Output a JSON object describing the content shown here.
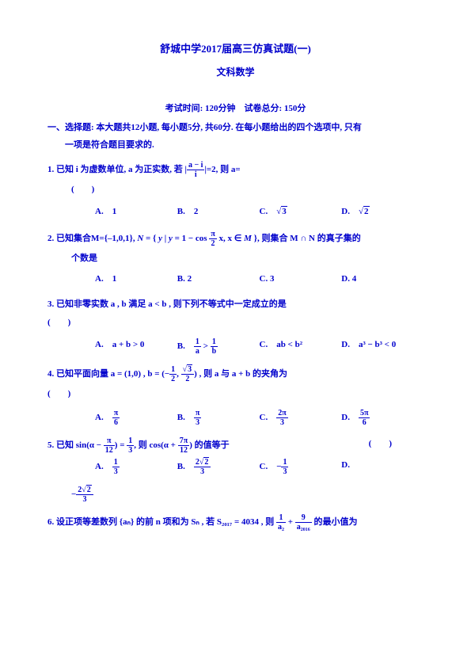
{
  "title": "舒城中学2017届高三仿真试题(一)",
  "subtitle": "文科数学",
  "exam_info": "考试时间: 120分钟　试卷总分: 150分",
  "section1": "一、选择题: 本大题共12小题, 每小题5分, 共60分. 在每小题给出的四个选项中, 只有",
  "section1b": "一项是符合题目要求的.",
  "q1": {
    "text": "1. 已知 i 为虚数单位, a 为正实数, 若 |",
    "text2": "|=2, 则 a=",
    "paren": "(　　)",
    "optA": "A.　1",
    "optB": "B.　2",
    "optC": "C.　",
    "optD": "D.　"
  },
  "q2": {
    "text": "2. 已知集合M={–1,0,1}, ",
    "text2": ", 则集合 M ∩ N 的真子集的",
    "text3": "个数是",
    "optA": "A.　1",
    "optB": "B. 2",
    "optC": "C. 3",
    "optD": "D. 4"
  },
  "q3": {
    "text": "3. 已知非零实数 a , b 满足 a < b , 则下列不等式中一定成立的是",
    "paren": "(　　)",
    "optA": "A.　a + b > 0",
    "optB": "B.　",
    "optC": "C.　ab < b²",
    "optD": "D.　a³ − b³ < 0"
  },
  "q4": {
    "text": "4. 已知平面向量 a = (1,0) , b = (−",
    "text2": ") , 则 a 与 a + b 的夹角为",
    "paren": "(　　)",
    "optA": "A.　",
    "optB": "B.　",
    "optC": "C.　",
    "optD": "D.　"
  },
  "q5": {
    "text": "5. 已知 sin(α −",
    "text2": ") =",
    "text3": ", 则 cos(α +",
    "text4": ") 的值等于",
    "paren": "(　　)",
    "optA": "A.　",
    "optB": "B.　",
    "optC": "C.　−",
    "optD": "D.",
    "extra": "−"
  },
  "q6": {
    "text": "6. 设正项等差数列 {aₙ} 的前 n 项和为 Sₙ , 若 S₂₀₁₇ = 4034 , 则 ",
    "text2": " 的最小值为"
  }
}
